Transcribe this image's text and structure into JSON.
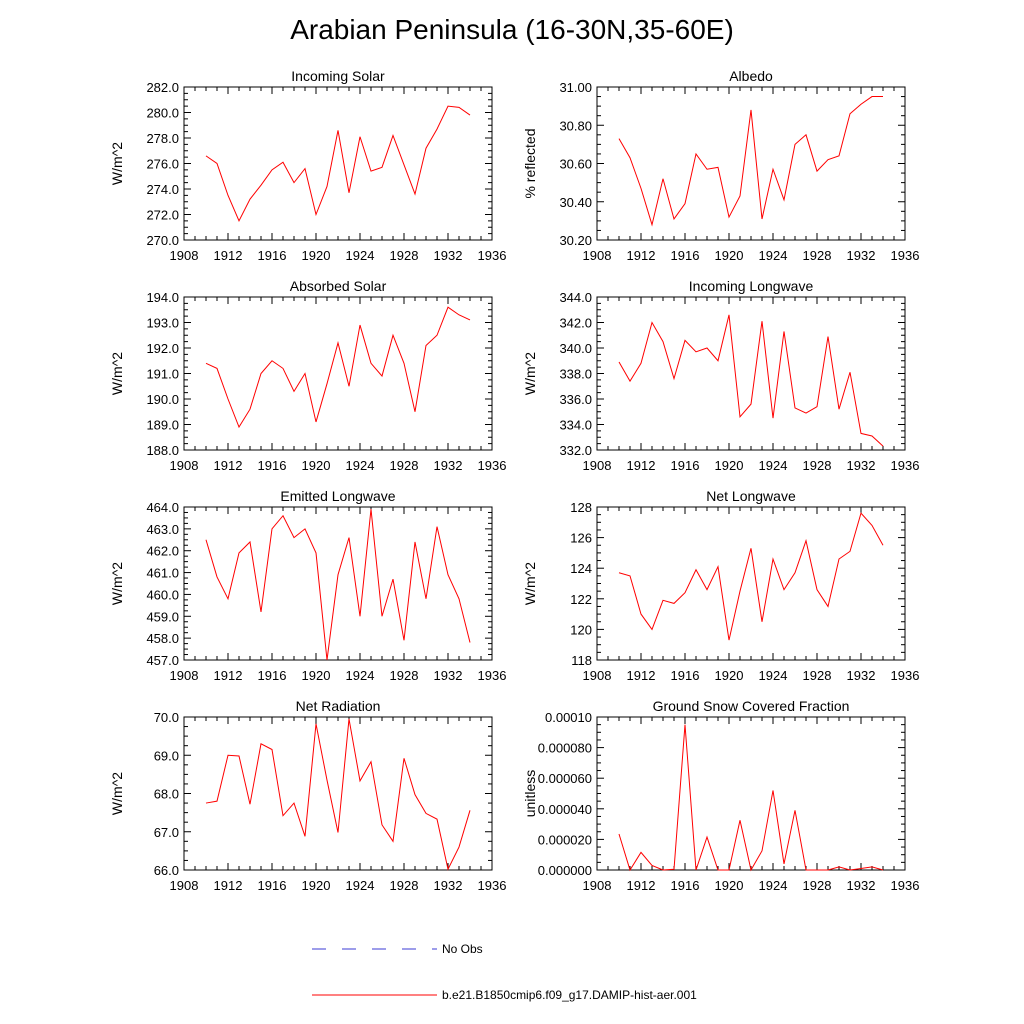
{
  "title": "Arabian Peninsula (16-30N,35-60E)",
  "colors": {
    "model": "#ff0000",
    "obs": "#3b3bd6",
    "axis": "#000000"
  },
  "legend": {
    "obs_label": "No Obs",
    "model_label": "b.e21.B1850cmip6.f09_g17.DAMIP-hist-aer.001"
  },
  "chart_data": [
    {
      "type": "line",
      "title": "Incoming Solar",
      "xlabel": "",
      "ylabel": "W/m^2",
      "xlim": [
        1908,
        1936
      ],
      "ylim": [
        270,
        282
      ],
      "yticks": [
        "270.0",
        "272.0",
        "274.0",
        "276.0",
        "278.0",
        "280.0",
        "282.0"
      ],
      "xticks": [
        "1908",
        "1912",
        "1916",
        "1920",
        "1924",
        "1928",
        "1932",
        "1936"
      ],
      "grid": false,
      "x": [
        1910,
        1911,
        1912,
        1913,
        1914,
        1915,
        1916,
        1917,
        1918,
        1919,
        1920,
        1921,
        1922,
        1923,
        1924,
        1925,
        1926,
        1927,
        1928,
        1929,
        1930,
        1931,
        1932,
        1933,
        1934
      ],
      "series": [
        {
          "name": "b.e21.B1850cmip6.f09_g17.DAMIP-hist-aer.001",
          "values": [
            276.6,
            276.0,
            273.5,
            271.5,
            273.2,
            274.3,
            275.5,
            276.1,
            274.5,
            275.6,
            272.0,
            274.2,
            278.6,
            273.7,
            278.1,
            275.4,
            275.7,
            278.2,
            275.9,
            273.6,
            277.2,
            278.7,
            280.5,
            280.4,
            279.8
          ]
        }
      ]
    },
    {
      "type": "line",
      "title": "Albedo",
      "xlabel": "",
      "ylabel": "% reflected",
      "xlim": [
        1908,
        1936
      ],
      "ylim": [
        30.2,
        31.0
      ],
      "yticks": [
        "30.20",
        "30.40",
        "30.60",
        "30.80",
        "31.00"
      ],
      "xticks": [
        "1908",
        "1912",
        "1916",
        "1920",
        "1924",
        "1928",
        "1932",
        "1936"
      ],
      "grid": false,
      "x": [
        1910,
        1911,
        1912,
        1913,
        1914,
        1915,
        1916,
        1917,
        1918,
        1919,
        1920,
        1921,
        1922,
        1923,
        1924,
        1925,
        1926,
        1927,
        1928,
        1929,
        1930,
        1931,
        1932,
        1933,
        1934
      ],
      "series": [
        {
          "name": "b.e21.B1850cmip6.f09_g17.DAMIP-hist-aer.001",
          "values": [
            30.73,
            30.63,
            30.47,
            30.28,
            30.52,
            30.31,
            30.39,
            30.65,
            30.57,
            30.58,
            30.32,
            30.43,
            30.88,
            30.31,
            30.57,
            30.41,
            30.7,
            30.75,
            30.56,
            30.62,
            30.64,
            30.86,
            30.91,
            30.95,
            30.95
          ]
        }
      ]
    },
    {
      "type": "line",
      "title": "Absorbed Solar",
      "xlabel": "",
      "ylabel": "W/m^2",
      "xlim": [
        1908,
        1936
      ],
      "ylim": [
        188,
        194
      ],
      "yticks": [
        "188.0",
        "189.0",
        "190.0",
        "191.0",
        "192.0",
        "193.0",
        "194.0"
      ],
      "xticks": [
        "1908",
        "1912",
        "1916",
        "1920",
        "1924",
        "1928",
        "1932",
        "1936"
      ],
      "grid": false,
      "x": [
        1910,
        1911,
        1912,
        1913,
        1914,
        1915,
        1916,
        1917,
        1918,
        1919,
        1920,
        1921,
        1922,
        1923,
        1924,
        1925,
        1926,
        1927,
        1928,
        1929,
        1930,
        1931,
        1932,
        1933,
        1934
      ],
      "series": [
        {
          "name": "b.e21.B1850cmip6.f09_g17.DAMIP-hist-aer.001",
          "values": [
            191.4,
            191.2,
            190.0,
            188.9,
            189.6,
            191.0,
            191.5,
            191.2,
            190.3,
            191.0,
            189.1,
            190.6,
            192.2,
            190.5,
            192.9,
            191.4,
            190.9,
            192.5,
            191.4,
            189.5,
            192.1,
            192.5,
            193.6,
            193.3,
            193.1
          ]
        }
      ]
    },
    {
      "type": "line",
      "title": "Incoming Longwave",
      "xlabel": "",
      "ylabel": "W/m^2",
      "xlim": [
        1908,
        1936
      ],
      "ylim": [
        332,
        344
      ],
      "yticks": [
        "332.0",
        "334.0",
        "336.0",
        "338.0",
        "340.0",
        "342.0",
        "344.0"
      ],
      "xticks": [
        "1908",
        "1912",
        "1916",
        "1920",
        "1924",
        "1928",
        "1932",
        "1936"
      ],
      "grid": false,
      "x": [
        1910,
        1911,
        1912,
        1913,
        1914,
        1915,
        1916,
        1917,
        1918,
        1919,
        1920,
        1921,
        1922,
        1923,
        1924,
        1925,
        1926,
        1927,
        1928,
        1929,
        1930,
        1931,
        1932,
        1933,
        1934
      ],
      "series": [
        {
          "name": "b.e21.B1850cmip6.f09_g17.DAMIP-hist-aer.001",
          "values": [
            338.9,
            337.4,
            338.8,
            342.0,
            340.5,
            337.6,
            340.6,
            339.7,
            340.0,
            339.0,
            342.6,
            334.6,
            335.6,
            342.1,
            334.5,
            341.3,
            335.3,
            334.9,
            335.4,
            340.9,
            335.2,
            338.1,
            333.3,
            333.1,
            332.3
          ]
        }
      ]
    },
    {
      "type": "line",
      "title": "Emitted Longwave",
      "xlabel": "",
      "ylabel": "W/m^2",
      "xlim": [
        1908,
        1936
      ],
      "ylim": [
        457,
        464
      ],
      "yticks": [
        "457.0",
        "458.0",
        "459.0",
        "460.0",
        "461.0",
        "462.0",
        "463.0",
        "464.0"
      ],
      "xticks": [
        "1908",
        "1912",
        "1916",
        "1920",
        "1924",
        "1928",
        "1932",
        "1936"
      ],
      "grid": false,
      "x": [
        1910,
        1911,
        1912,
        1913,
        1914,
        1915,
        1916,
        1917,
        1918,
        1919,
        1920,
        1921,
        1922,
        1923,
        1924,
        1925,
        1926,
        1927,
        1928,
        1929,
        1930,
        1931,
        1932,
        1933,
        1934
      ],
      "series": [
        {
          "name": "b.e21.B1850cmip6.f09_g17.DAMIP-hist-aer.001",
          "values": [
            462.5,
            460.8,
            459.8,
            461.9,
            462.4,
            459.2,
            463.0,
            463.6,
            462.6,
            463.0,
            461.9,
            457.0,
            460.9,
            462.6,
            459.0,
            463.9,
            459.0,
            460.7,
            457.9,
            462.4,
            459.8,
            463.1,
            460.9,
            459.8,
            457.8
          ]
        }
      ]
    },
    {
      "type": "line",
      "title": "Net Longwave",
      "xlabel": "",
      "ylabel": "W/m^2",
      "xlim": [
        1908,
        1936
      ],
      "ylim": [
        118,
        128
      ],
      "yticks": [
        "118",
        "120",
        "122",
        "124",
        "126",
        "128"
      ],
      "xticks": [
        "1908",
        "1912",
        "1916",
        "1920",
        "1924",
        "1928",
        "1932",
        "1936"
      ],
      "grid": false,
      "x": [
        1910,
        1911,
        1912,
        1913,
        1914,
        1915,
        1916,
        1917,
        1918,
        1919,
        1920,
        1921,
        1922,
        1923,
        1924,
        1925,
        1926,
        1927,
        1928,
        1929,
        1930,
        1931,
        1932,
        1933,
        1934
      ],
      "series": [
        {
          "name": "b.e21.B1850cmip6.f09_g17.DAMIP-hist-aer.001",
          "values": [
            123.7,
            123.5,
            121.0,
            120.0,
            121.9,
            121.7,
            122.4,
            123.9,
            122.6,
            124.1,
            119.3,
            122.5,
            125.3,
            120.5,
            124.6,
            122.6,
            123.7,
            125.8,
            122.6,
            121.5,
            124.6,
            125.1,
            127.6,
            126.8,
            125.5
          ]
        }
      ]
    },
    {
      "type": "line",
      "title": "Net Radiation",
      "xlabel": "",
      "ylabel": "W/m^2",
      "xlim": [
        1908,
        1936
      ],
      "ylim": [
        66,
        70
      ],
      "yticks": [
        "66.0",
        "67.0",
        "68.0",
        "69.0",
        "70.0"
      ],
      "xticks": [
        "1908",
        "1912",
        "1916",
        "1920",
        "1924",
        "1928",
        "1932",
        "1936"
      ],
      "grid": false,
      "x": [
        1910,
        1911,
        1912,
        1913,
        1914,
        1915,
        1916,
        1917,
        1918,
        1919,
        1920,
        1921,
        1922,
        1923,
        1924,
        1925,
        1926,
        1927,
        1928,
        1929,
        1930,
        1931,
        1932,
        1933,
        1934
      ],
      "series": [
        {
          "name": "b.e21.B1850cmip6.f09_g17.DAMIP-hist-aer.001",
          "values": [
            67.75,
            67.8,
            69.0,
            68.98,
            67.72,
            69.3,
            69.15,
            67.42,
            67.75,
            66.88,
            69.82,
            68.35,
            66.98,
            69.95,
            68.33,
            68.83,
            67.18,
            66.75,
            68.92,
            67.97,
            67.48,
            67.33,
            66.02,
            66.6,
            67.56
          ]
        }
      ]
    },
    {
      "type": "line",
      "title": "Ground Snow Covered Fraction",
      "xlabel": "",
      "ylabel": "unitless",
      "xlim": [
        1908,
        1936
      ],
      "ylim": [
        0,
        0.0001
      ],
      "yticks": [
        "0.000000",
        "0.000020",
        "0.000040",
        "0.000060",
        "0.000080",
        "0.00010"
      ],
      "xticks": [
        "1908",
        "1912",
        "1916",
        "1920",
        "1924",
        "1928",
        "1932",
        "1936"
      ],
      "grid": false,
      "x": [
        1910,
        1911,
        1912,
        1913,
        1914,
        1915,
        1916,
        1917,
        1918,
        1919,
        1920,
        1921,
        1922,
        1923,
        1924,
        1925,
        1926,
        1927,
        1928,
        1929,
        1930,
        1931,
        1932,
        1933,
        1934
      ],
      "series": [
        {
          "name": "b.e21.B1850cmip6.f09_g17.DAMIP-hist-aer.001",
          "values": [
            2.35e-05,
            0.0,
            1.15e-05,
            3e-06,
            0.0,
            5e-07,
            9.5e-05,
            0.0,
            2.15e-05,
            0.0,
            0.0,
            3.25e-05,
            0.0,
            1.25e-05,
            5.2e-05,
            4e-06,
            3.9e-05,
            0.0,
            0.0,
            0.0,
            2e-06,
            0.0,
            1e-06,
            2e-06,
            0.0
          ]
        }
      ]
    }
  ]
}
